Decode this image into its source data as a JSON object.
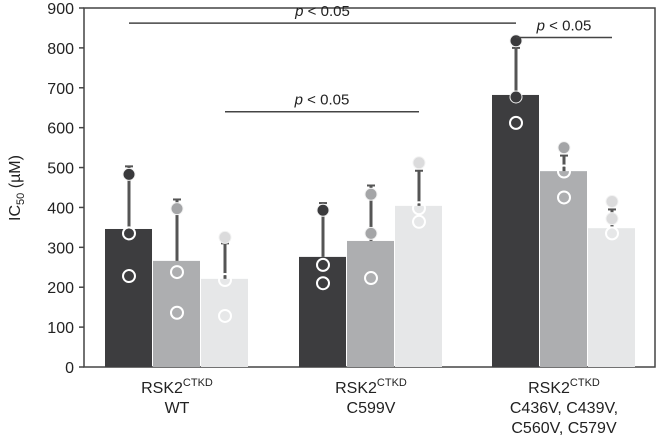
{
  "chart_data": {
    "type": "bar",
    "ylabel": "IC50 (µM)",
    "ylabel_main": "IC",
    "ylabel_sub": "50",
    "ylabel_unit": " (µM)",
    "ylim": [
      0,
      900
    ],
    "yticks": [
      0,
      100,
      200,
      300,
      400,
      500,
      600,
      700,
      800,
      900
    ],
    "categories": [
      {
        "main": "RSK2",
        "sup": "CTKD",
        "lines": [
          "WT"
        ]
      },
      {
        "main": "RSK2",
        "sup": "CTKD",
        "lines": [
          "C599V"
        ]
      },
      {
        "main": "RSK2",
        "sup": "CTKD",
        "lines": [
          "C436V, C439V,",
          "C560V, C579V"
        ]
      }
    ],
    "series_colors": [
      "#3d3d3f",
      "#adaeb0",
      "#e6e7e8"
    ],
    "groups": [
      {
        "bars": [
          {
            "value": 346,
            "error_top": 503,
            "points": [
              {
                "v": 483,
                "filled": true
              },
              {
                "v": 335,
                "filled": false
              },
              {
                "v": 228,
                "filled": false
              }
            ]
          },
          {
            "value": 266,
            "error_top": 420,
            "points": [
              {
                "v": 397,
                "filled": true
              },
              {
                "v": 238,
                "filled": false
              },
              {
                "v": 136,
                "filled": false
              }
            ]
          },
          {
            "value": 221,
            "error_top": 310,
            "points": [
              {
                "v": 325,
                "filled": true
              },
              {
                "v": 218,
                "filled": false
              },
              {
                "v": 128,
                "filled": false
              }
            ]
          }
        ]
      },
      {
        "bars": [
          {
            "value": 276,
            "error_top": 411,
            "points": [
              {
                "v": 393,
                "filled": true
              },
              {
                "v": 256,
                "filled": false
              },
              {
                "v": 210,
                "filled": false
              }
            ]
          },
          {
            "value": 316,
            "error_top": 455,
            "points": [
              {
                "v": 433,
                "filled": true
              },
              {
                "v": 335,
                "filled": true
              },
              {
                "v": 223,
                "filled": false
              }
            ]
          },
          {
            "value": 404,
            "error_top": 492,
            "points": [
              {
                "v": 512,
                "filled": true
              },
              {
                "v": 398,
                "filled": false
              },
              {
                "v": 364,
                "filled": false
              }
            ]
          }
        ]
      },
      {
        "bars": [
          {
            "value": 682,
            "error_top": 800,
            "points": [
              {
                "v": 818,
                "filled": true
              },
              {
                "v": 677,
                "filled": true
              },
              {
                "v": 612,
                "filled": false
              }
            ]
          },
          {
            "value": 491,
            "error_top": 530,
            "points": [
              {
                "v": 550,
                "filled": true
              },
              {
                "v": 490,
                "filled": false
              },
              {
                "v": 425,
                "filled": false
              }
            ]
          },
          {
            "value": 348,
            "error_top": 395,
            "points": [
              {
                "v": 415,
                "filled": true
              },
              {
                "v": 372,
                "filled": true
              },
              {
                "v": 335,
                "filled": false
              }
            ]
          }
        ]
      }
    ],
    "annotations": [
      {
        "text": "p < 0.05",
        "from": [
          0,
          0
        ],
        "to": [
          2,
          0
        ],
        "level": 862
      },
      {
        "text": "p < 0.05",
        "from": [
          2,
          0
        ],
        "to": [
          2,
          2
        ],
        "level": 826
      },
      {
        "text": "p < 0.05",
        "from": [
          0,
          2
        ],
        "to": [
          1,
          2
        ],
        "level": 640
      }
    ]
  }
}
